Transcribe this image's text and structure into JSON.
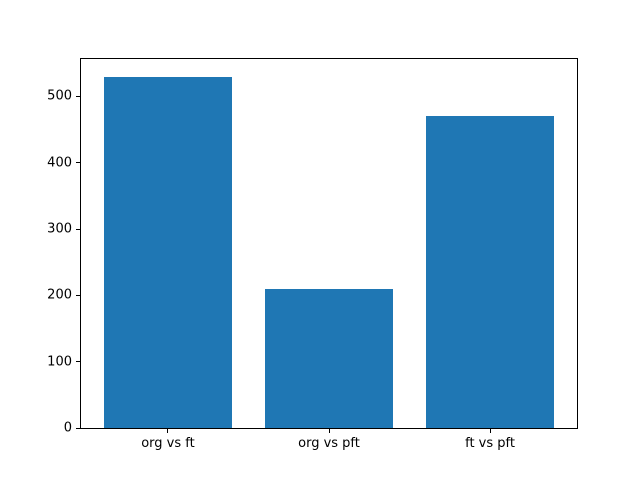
{
  "chart_data": {
    "type": "bar",
    "title": "",
    "xlabel": "",
    "ylabel": "",
    "categories": [
      "org vs ft",
      "org vs pft",
      "ft vs pft"
    ],
    "values": [
      530,
      209,
      470
    ],
    "yticks": [
      0,
      100,
      200,
      300,
      400,
      500
    ],
    "ylim": [
      0,
      556.5
    ],
    "xlim": [
      -0.54,
      2.54
    ],
    "bar_width": 0.8,
    "grid": false,
    "legend": null,
    "bar_color": "#1f77b4",
    "axis_color": "#000000",
    "background_color": "#ffffff"
  }
}
